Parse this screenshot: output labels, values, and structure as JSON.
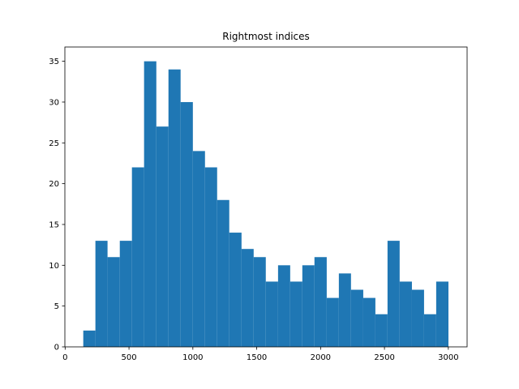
{
  "chart_data": {
    "type": "bar",
    "title": "Rightmost indices",
    "xlabel": "",
    "ylabel": "",
    "xlim": [
      -2,
      3147
    ],
    "ylim": [
      0,
      36.75
    ],
    "x_ticks": [
      0,
      500,
      1000,
      1500,
      2000,
      2500,
      3000
    ],
    "y_ticks": [
      0,
      5,
      10,
      15,
      20,
      25,
      30,
      35
    ],
    "bin_edges": [
      142,
      237,
      332,
      428,
      523,
      618,
      714,
      809,
      904,
      1000,
      1095,
      1190,
      1285,
      1381,
      1476,
      1571,
      1667,
      1762,
      1857,
      1952,
      2048,
      2143,
      2238,
      2334,
      2429,
      2524,
      2619,
      2715,
      2810,
      2905,
      3001
    ],
    "values": [
      2,
      13,
      11,
      13,
      22,
      35,
      27,
      34,
      30,
      24,
      22,
      18,
      14,
      12,
      11,
      8,
      10,
      8,
      10,
      11,
      6,
      9,
      7,
      6,
      4,
      13,
      8,
      7,
      4,
      8
    ],
    "color": "#1f77b4",
    "grid": false
  }
}
